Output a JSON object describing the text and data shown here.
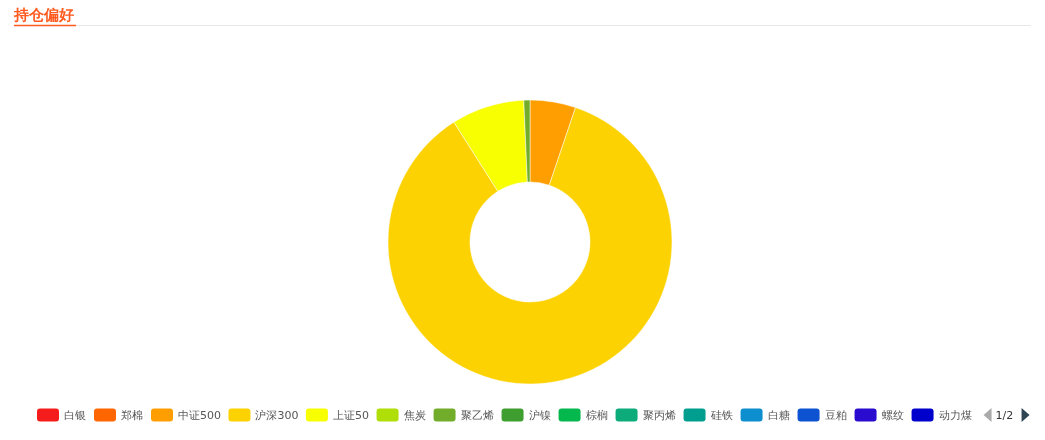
{
  "chart_data": {
    "type": "donut",
    "title": "持仓偏好",
    "categories": [
      "白银",
      "郑棉",
      "中证500",
      "沪深300",
      "上证50",
      "焦炭",
      "聚乙烯",
      "沪镍",
      "棕榈",
      "聚丙烯",
      "硅铁",
      "白糖",
      "豆粕",
      "螺纹",
      "动力煤"
    ],
    "values": [
      0,
      0,
      5.2,
      85.8,
      8.3,
      0,
      0.7,
      0,
      0,
      0,
      0,
      0,
      0,
      0,
      0
    ],
    "colors": [
      "#f51c1c",
      "#ff6600",
      "#ff9e01",
      "#fcd202",
      "#f8ff01",
      "#b0de09",
      "#71ad2b",
      "#3e9e2f",
      "#04b84e",
      "#0daa7a",
      "#009e8f",
      "#0d8ecf",
      "#0d52d1",
      "#2a0cd0",
      "#0000cc"
    ],
    "legend": "bottom",
    "annotations": [
      "1/2"
    ]
  }
}
